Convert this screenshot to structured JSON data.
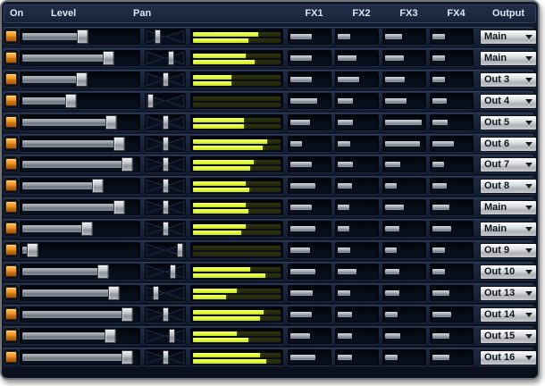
{
  "header": {
    "on": "On",
    "level": "Level",
    "pan": "Pan",
    "fx": [
      "FX1",
      "FX2",
      "FX3",
      "FX4"
    ],
    "output": "Output"
  },
  "icons": {
    "dropdown_caret": "caret-down",
    "pan_background": "bowtie-crossfade"
  },
  "colors": {
    "led_on": "#f09426",
    "meter_lit": "#e4f93c",
    "meter_unlit": "#2b2f10",
    "window_bg": "#0d1525",
    "handle_metal": "#c4c8cd",
    "dropdown_bg": "#d6d8da",
    "header_text": "#dbe5f3"
  },
  "channels": [
    {
      "on": true,
      "level": 53,
      "pan": -54,
      "meter": [
        74,
        63
      ],
      "fx": [
        56,
        34,
        45,
        34
      ],
      "output": "Main"
    },
    {
      "on": true,
      "level": 78,
      "pan": 39,
      "meter": [
        60,
        70
      ],
      "fx": [
        56,
        49,
        49,
        34
      ],
      "output": "Main"
    },
    {
      "on": true,
      "level": 52,
      "pan": 0,
      "meter": [
        44,
        44
      ],
      "fx": [
        56,
        56,
        52,
        34
      ],
      "output": "Out 3"
    },
    {
      "on": true,
      "level": 41,
      "pan": -100,
      "meter": [
        0,
        0
      ],
      "fx": [
        71,
        41,
        56,
        37
      ],
      "output": "Out 4"
    },
    {
      "on": true,
      "level": 80,
      "pan": 0,
      "meter": [
        58,
        58
      ],
      "fx": [
        52,
        41,
        97,
        41
      ],
      "output": "Out 5"
    },
    {
      "on": true,
      "level": 88,
      "pan": 0,
      "meter": [
        85,
        80
      ],
      "fx": [
        30,
        34,
        93,
        56
      ],
      "output": "Out 6"
    },
    {
      "on": true,
      "level": 96,
      "pan": 0,
      "meter": [
        69,
        65
      ],
      "fx": [
        56,
        41,
        41,
        30
      ],
      "output": "Out 7"
    },
    {
      "on": true,
      "level": 67,
      "pan": 0,
      "meter": [
        60,
        64
      ],
      "fx": [
        67,
        37,
        30,
        37
      ],
      "output": "Out 8"
    },
    {
      "on": true,
      "level": 88,
      "pan": 0,
      "meter": [
        60,
        63
      ],
      "fx": [
        56,
        30,
        49,
        45
      ],
      "output": "Main"
    },
    {
      "on": true,
      "level": 57,
      "pan": 0,
      "meter": [
        60,
        55
      ],
      "fx": [
        67,
        30,
        37,
        49
      ],
      "output": "Main"
    },
    {
      "on": true,
      "level": 4,
      "pan": 97,
      "meter": [
        0,
        0
      ],
      "fx": [
        52,
        34,
        30,
        34
      ],
      "output": "Out 9"
    },
    {
      "on": true,
      "level": 72,
      "pan": 49,
      "meter": [
        65,
        83
      ],
      "fx": [
        67,
        49,
        37,
        34
      ],
      "output": "Out 10"
    },
    {
      "on": true,
      "level": 83,
      "pan": -66,
      "meter": [
        50,
        38
      ],
      "fx": [
        60,
        34,
        37,
        45
      ],
      "output": "Out 13"
    },
    {
      "on": true,
      "level": 96,
      "pan": 0,
      "meter": [
        81,
        77
      ],
      "fx": [
        56,
        37,
        34,
        49
      ],
      "output": "Out 14"
    },
    {
      "on": true,
      "level": 79,
      "pan": 45,
      "meter": [
        50,
        63
      ],
      "fx": [
        52,
        37,
        41,
        45
      ],
      "output": "Out 15"
    },
    {
      "on": true,
      "level": 96,
      "pan": 0,
      "meter": [
        77,
        84
      ],
      "fx": [
        67,
        37,
        34,
        45
      ],
      "output": "Out 16"
    }
  ]
}
